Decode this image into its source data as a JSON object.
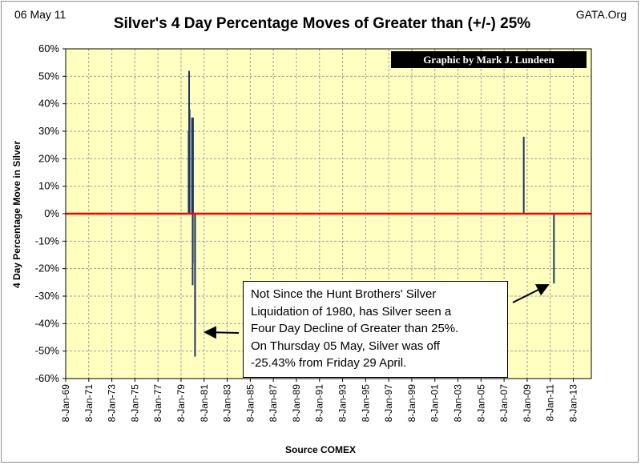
{
  "header": {
    "date": "06 May 11",
    "source_site": "GATA.Org",
    "title": "Silver's 4 Day Percentage Moves of Greater than (+/-) 25%"
  },
  "credit": "Graphic by Mark J. Lundeen",
  "annotation": {
    "lines": [
      "Not Since the Hunt Brothers' Silver",
      "Liquidation of 1980, has Silver seen a",
      "Four Day Decline of Greater than 25%.",
      "On Thursday 05 May, Silver was off",
      "-25.43% from Friday 29 April."
    ]
  },
  "colors": {
    "plot_background": "#ffffc0",
    "gridline": "#a0a0a0",
    "series": "#1f3864",
    "zero_line": "#ff0000",
    "credit_background": "#000000"
  },
  "chart_data": {
    "type": "line",
    "title": "Silver's 4 Day Percentage Moves of Greater than (+/-) 25%",
    "xlabel": "Source COMEX",
    "ylabel": "4 Day Percentage Move in Silver",
    "ylim": [
      -60,
      60
    ],
    "xlim": [
      "1969-01-08",
      "2014-08-01"
    ],
    "grid": true,
    "y_ticks": [
      -60,
      -50,
      -40,
      -30,
      -20,
      -10,
      0,
      10,
      20,
      30,
      40,
      50,
      60
    ],
    "y_tick_labels": [
      "-60%",
      "-50%",
      "-40%",
      "-30%",
      "-20%",
      "-10%",
      "0%",
      "10%",
      "20%",
      "30%",
      "40%",
      "50%",
      "60%"
    ],
    "x_ticks": [
      "1969-01-08",
      "1971-01-08",
      "1973-01-08",
      "1975-01-08",
      "1977-01-08",
      "1979-01-08",
      "1981-01-08",
      "1983-01-08",
      "1985-01-08",
      "1987-01-08",
      "1989-01-08",
      "1991-01-08",
      "1993-01-08",
      "1995-01-08",
      "1997-01-08",
      "1999-01-08",
      "2001-01-08",
      "2003-01-08",
      "2005-01-08",
      "2007-01-08",
      "2009-01-08",
      "2011-01-08",
      "2013-01-08"
    ],
    "x_tick_labels": [
      "8-Jan-69",
      "8-Jan-71",
      "8-Jan-73",
      "8-Jan-75",
      "8-Jan-77",
      "8-Jan-79",
      "8-Jan-81",
      "8-Jan-83",
      "8-Jan-85",
      "8-Jan-87",
      "8-Jan-89",
      "8-Jan-91",
      "8-Jan-93",
      "8-Jan-95",
      "8-Jan-97",
      "8-Jan-99",
      "8-Jan-01",
      "8-Jan-03",
      "8-Jan-05",
      "8-Jan-07",
      "8-Jan-09",
      "8-Jan-11",
      "8-Jan-13"
    ],
    "series": [
      {
        "x": [
          "1979-09-05",
          "1979-09-20",
          "1979-10-05",
          "1979-12-20",
          "1980-01-10",
          "1980-01-15",
          "1980-01-22",
          "1980-03-25",
          "1980-03-28",
          "2008-09-22",
          "2011-05-05"
        ],
        "values": [
          30,
          52,
          38,
          35,
          -26,
          -18,
          35,
          -52,
          -40,
          28,
          -25.43
        ]
      }
    ],
    "reference_line": {
      "y": 0
    }
  }
}
